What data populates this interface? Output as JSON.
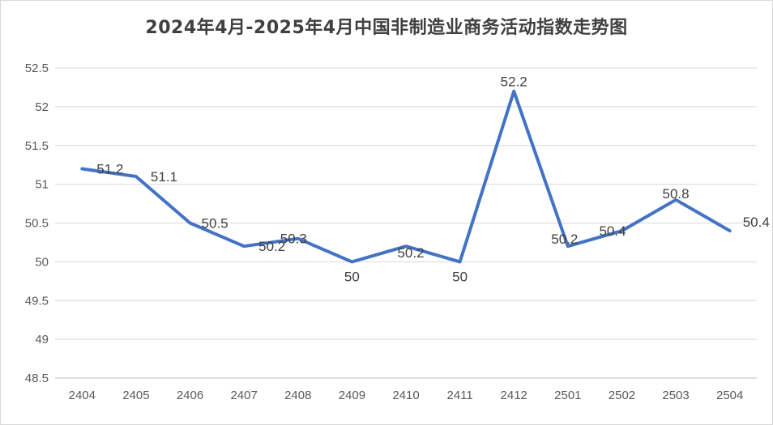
{
  "chart_data": {
    "type": "line",
    "title": "2024年4月-2025年4月中国非制造业商务活动指数走势图",
    "xlabel": "",
    "ylabel": "",
    "categories": [
      "2404",
      "2405",
      "2406",
      "2407",
      "2408",
      "2409",
      "2410",
      "2411",
      "2412",
      "2501",
      "2502",
      "2503",
      "2504"
    ],
    "values": [
      51.2,
      51.1,
      50.5,
      50.2,
      50.3,
      50,
      50.2,
      50,
      52.2,
      50.2,
      50.4,
      50.8,
      50.4
    ],
    "data_labels": [
      "51.2",
      "51.1",
      "50.5",
      "50.2",
      "50.3",
      "50",
      "50.2",
      "50",
      "52.2",
      "50.2",
      "50.4",
      "50.8",
      "50.4"
    ],
    "ylim": [
      48.5,
      52.5
    ],
    "yticks": [
      "48.5",
      "49",
      "49.5",
      "50",
      "50.5",
      "51",
      "51.5",
      "52",
      "52.5"
    ],
    "grid": true,
    "legend": "none",
    "line_color": "#4472c4"
  }
}
